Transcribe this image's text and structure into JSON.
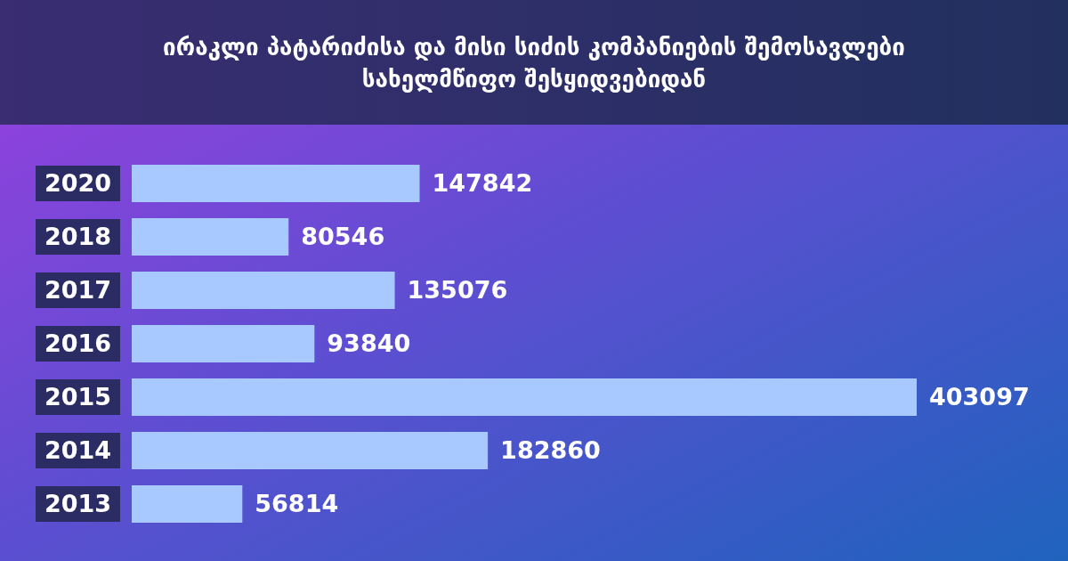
{
  "chart_data": {
    "type": "bar",
    "orientation": "horizontal",
    "title": "ირაკლი პატარიძისა და მისი სიძის კომპანიების შემოსავლები სახელმწიფო შესყიდვებიდან",
    "categories": [
      "2020",
      "2018",
      "2017",
      "2016",
      "2015",
      "2014",
      "2013"
    ],
    "values": [
      147842,
      80546,
      135076,
      93840,
      403097,
      182860,
      56814
    ],
    "color": "#a8c9ff",
    "data_labels": true
  }
}
